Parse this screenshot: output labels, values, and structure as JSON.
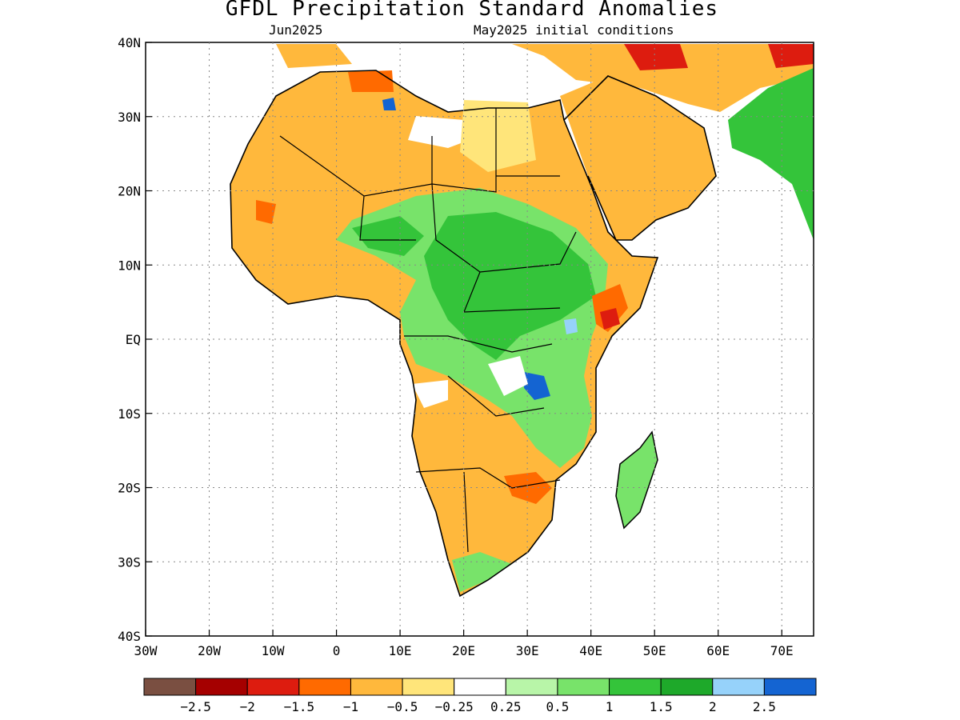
{
  "title": "GFDL Precipitation Standard Anomalies",
  "subtitle_left": "Jun2025",
  "subtitle_right": "May2025 initial conditions",
  "axes": {
    "lon_labels": [
      "30W",
      "20W",
      "10W",
      "0",
      "10E",
      "20E",
      "30E",
      "40E",
      "50E",
      "60E",
      "70E"
    ],
    "lat_labels": [
      "40N",
      "30N",
      "20N",
      "10N",
      "EQ",
      "10S",
      "20S",
      "30S",
      "40S"
    ]
  },
  "colorbar": {
    "colors": [
      "#7a4f41",
      "#a50000",
      "#dd1c0f",
      "#ff6a00",
      "#ffb83c",
      "#ffe57a",
      "#ffffff",
      "#b8f5a8",
      "#78e36a",
      "#34c43a",
      "#1ea92a",
      "#96d2fa",
      "#1464d2"
    ],
    "labels": [
      "−2.5",
      "−2",
      "−1.5",
      "−1",
      "−0.5",
      "−0.25",
      "0.25",
      "0.5",
      "1",
      "1.5",
      "2",
      "2.5"
    ]
  }
}
